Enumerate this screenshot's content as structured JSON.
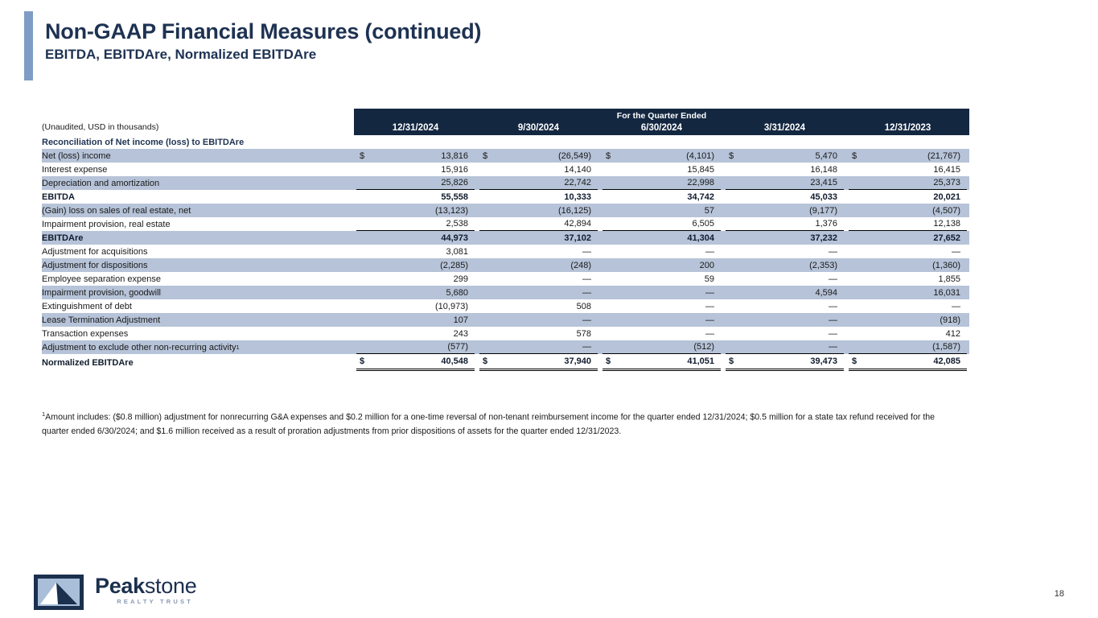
{
  "header": {
    "title": "Non-GAAP Financial Measures (continued)",
    "subtitle": "EBITDA, EBITDAre, Normalized EBITDAre"
  },
  "table": {
    "unaudited_note": "(Unaudited, USD in thousands)",
    "section_label": "Reconciliation of Net income (loss) to EBITDAre",
    "spanner": "For the Quarter Ended",
    "columns": [
      "12/31/2024",
      "9/30/2024",
      "6/30/2024",
      "3/31/2024",
      "12/31/2023"
    ],
    "rows": [
      {
        "label": "Net (loss) income",
        "striped": true,
        "bold": false,
        "dollar": true,
        "underline": "none",
        "values": [
          "13,816",
          "(26,549)",
          "(4,101)",
          "5,470",
          "(21,767)"
        ]
      },
      {
        "label": "Interest expense",
        "striped": false,
        "bold": false,
        "dollar": false,
        "underline": "none",
        "values": [
          "15,916",
          "14,140",
          "15,845",
          "16,148",
          "16,415"
        ]
      },
      {
        "label": "Depreciation and amortization",
        "striped": true,
        "bold": false,
        "dollar": false,
        "underline": "single",
        "values": [
          "25,826",
          "22,742",
          "22,998",
          "23,415",
          "25,373"
        ]
      },
      {
        "label": "EBITDA",
        "striped": false,
        "bold": true,
        "dollar": false,
        "underline": "none",
        "values": [
          "55,558",
          "10,333",
          "34,742",
          "45,033",
          "20,021"
        ]
      },
      {
        "label": "(Gain) loss on sales of real estate, net",
        "striped": true,
        "bold": false,
        "dollar": false,
        "underline": "none",
        "values": [
          "(13,123)",
          "(16,125)",
          "57",
          "(9,177)",
          "(4,507)"
        ]
      },
      {
        "label": "Impairment provision, real estate",
        "striped": false,
        "bold": false,
        "dollar": false,
        "underline": "single",
        "values": [
          "2,538",
          "42,894",
          "6,505",
          "1,376",
          "12,138"
        ]
      },
      {
        "label": "EBITDAre",
        "striped": true,
        "bold": true,
        "dollar": false,
        "underline": "none",
        "values": [
          "44,973",
          "37,102",
          "41,304",
          "37,232",
          "27,652"
        ]
      },
      {
        "label": "Adjustment for acquisitions",
        "striped": false,
        "bold": false,
        "dollar": false,
        "underline": "none",
        "values": [
          "3,081",
          "—",
          "—",
          "—",
          "—"
        ]
      },
      {
        "label": "Adjustment for dispositions",
        "striped": true,
        "bold": false,
        "dollar": false,
        "underline": "none",
        "values": [
          "(2,285)",
          "(248)",
          "200",
          "(2,353)",
          "(1,360)"
        ]
      },
      {
        "label": "Employee separation expense",
        "striped": false,
        "bold": false,
        "dollar": false,
        "underline": "none",
        "values": [
          "299",
          "—",
          "59",
          "—",
          "1,855"
        ]
      },
      {
        "label": "Impairment provision, goodwill",
        "striped": true,
        "bold": false,
        "dollar": false,
        "underline": "none",
        "values": [
          "5,680",
          "—",
          "—",
          "4,594",
          "16,031"
        ]
      },
      {
        "label": "Extinguishment of debt",
        "striped": false,
        "bold": false,
        "dollar": false,
        "underline": "none",
        "values": [
          "(10,973)",
          "508",
          "—",
          "—",
          "—"
        ]
      },
      {
        "label": "Lease Termination Adjustment",
        "striped": true,
        "bold": false,
        "dollar": false,
        "underline": "none",
        "values": [
          "107",
          "—",
          "—",
          "—",
          "(918)"
        ]
      },
      {
        "label": "Transaction expenses",
        "striped": false,
        "bold": false,
        "dollar": false,
        "underline": "none",
        "values": [
          "243",
          "578",
          "—",
          "—",
          "412"
        ]
      },
      {
        "label": "Adjustment to exclude other non-recurring activity",
        "label_sup": "1",
        "striped": true,
        "bold": false,
        "dollar": false,
        "underline": "single",
        "values": [
          "(577)",
          "—",
          "(512)",
          "—",
          "(1,587)"
        ]
      },
      {
        "label": "Normalized EBITDAre",
        "striped": false,
        "bold": true,
        "dollar": true,
        "total": true,
        "underline": "double",
        "values": [
          "40,548",
          "37,940",
          "41,051",
          "39,473",
          "42,085"
        ]
      }
    ]
  },
  "footnote": {
    "sup": "1",
    "text": "Amount includes: ($0.8 million) adjustment for nonrecurring G&A expenses and $0.2 million for a one-time reversal of non-tenant reimbursement income for the quarter ended 12/31/2024; $0.5 million for a state tax refund received for the quarter ended 6/30/2024; and $1.6 million received as a result of proration adjustments from prior dispositions of assets for the quarter ended 12/31/2023."
  },
  "logo": {
    "brand_bold": "Peak",
    "brand_light": "stone",
    "tagline": "REALTY TRUST"
  },
  "page_number": "18",
  "colors": {
    "header_navy": "#142741",
    "row_stripe": "#b6c3d8",
    "accent_bar": "#7f9dc4",
    "title_navy": "#1e3252",
    "logo_navy": "#1b2f4e"
  }
}
